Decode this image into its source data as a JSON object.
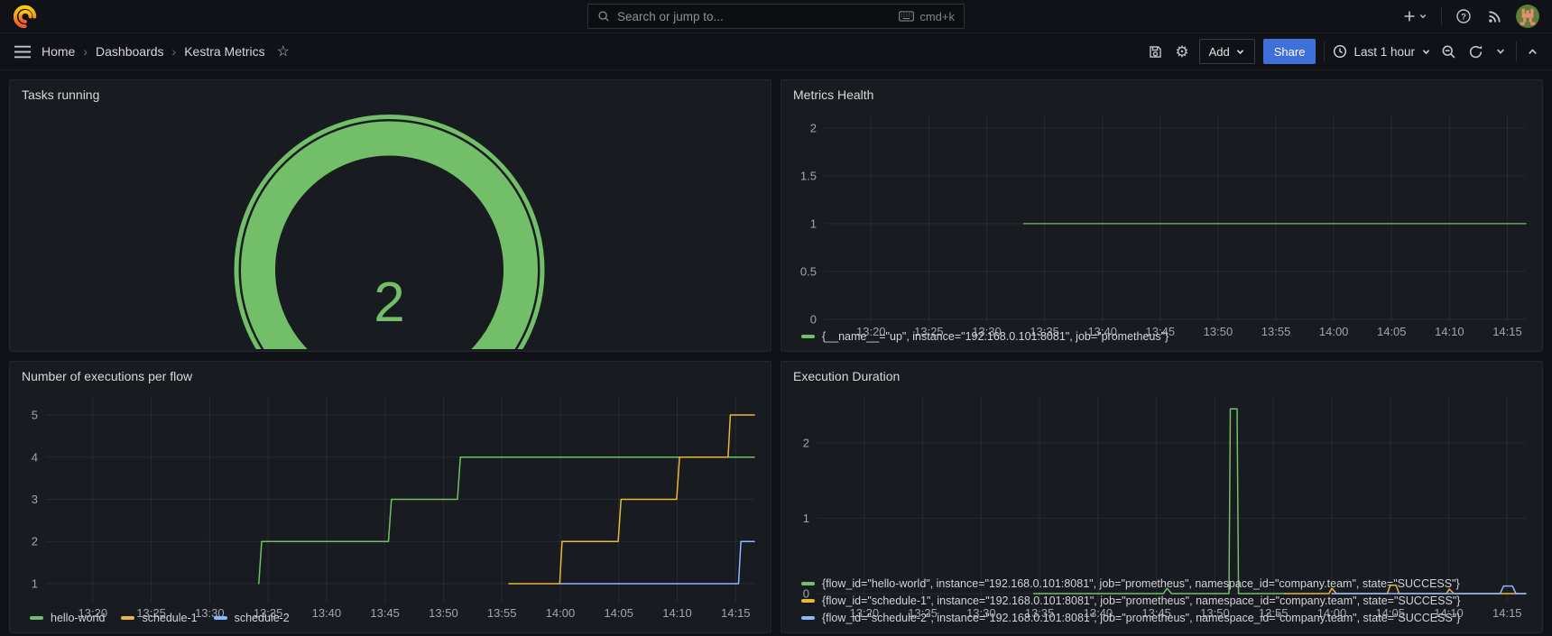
{
  "nav": {
    "search_placeholder": "Search or jump to...",
    "search_shortcut": "cmd+k"
  },
  "breadcrumb": {
    "items": [
      "Home",
      "Dashboards",
      "Kestra Metrics"
    ]
  },
  "toolbar": {
    "add_label": "Add",
    "share_label": "Share",
    "time_range_label": "Last 1 hour"
  },
  "colors": {
    "green": "#73BF69",
    "yellow": "#EAB839",
    "blue": "#8AB8FF",
    "share_button": "#3D71D9",
    "grid": "rgba(204,204,220,0.09)",
    "axis_text": "#A2A5AD",
    "legend_text": "#D3D4D9"
  },
  "chart_data": [
    {
      "panel": "tasks-running",
      "type": "gauge",
      "title": "Tasks running",
      "value": "2",
      "color_key": "green"
    },
    {
      "panel": "metrics-health",
      "type": "line",
      "title": "Metrics Health",
      "ml": 42,
      "x_domain": [
        16,
        76.6
      ],
      "x_ticks": [
        20,
        25,
        30,
        35,
        40,
        45,
        50,
        55,
        60,
        65,
        70,
        75
      ],
      "x_tick_labels": [
        "13:20",
        "13:25",
        "13:30",
        "13:35",
        "13:40",
        "13:45",
        "13:50",
        "13:55",
        "14:00",
        "14:05",
        "14:10",
        "14:15"
      ],
      "y_domain": [
        -0.02,
        2.14
      ],
      "y_ticks": [
        0,
        0.5,
        1,
        1.5,
        2
      ],
      "y_tick_labels": [
        "0",
        "0.5",
        "1",
        "1.5",
        "2"
      ],
      "series": [
        {
          "name": "up",
          "color_key": "green",
          "width": 1.3,
          "points": [
            [
              33.2,
              1
            ],
            [
              76.6,
              1
            ]
          ]
        }
      ],
      "legend": {
        "layout": "row",
        "items": [
          {
            "color_key": "green",
            "label": "{__name__=\"up\", instance=\"192.168.0.101:8081\", job=\"prometheus\"}"
          }
        ]
      }
    },
    {
      "panel": "executions",
      "type": "line",
      "title": "Number of executions per flow",
      "ml": 34,
      "x_domain": [
        16,
        76.6
      ],
      "x_ticks": [
        20,
        25,
        30,
        35,
        40,
        45,
        50,
        55,
        60,
        65,
        70,
        75
      ],
      "x_tick_labels": [
        "13:20",
        "13:25",
        "13:30",
        "13:35",
        "13:40",
        "13:45",
        "13:50",
        "13:55",
        "14:00",
        "14:05",
        "14:10",
        "14:15"
      ],
      "y_domain": [
        0.55,
        5.45
      ],
      "y_ticks": [
        1,
        2,
        3,
        4,
        5
      ],
      "y_tick_labels": [
        "1",
        "2",
        "3",
        "4",
        "5"
      ],
      "series": [
        {
          "name": "hello-world",
          "color_key": "green",
          "width": 1.5,
          "points": [
            [
              34.2,
              1
            ],
            [
              34.45,
              2
            ],
            [
              45.3,
              2
            ],
            [
              45.55,
              3
            ],
            [
              51.2,
              3
            ],
            [
              51.45,
              4
            ],
            [
              76.6,
              4
            ]
          ]
        },
        {
          "name": "schedule-1",
          "color_key": "yellow",
          "width": 1.5,
          "points": [
            [
              55.6,
              1
            ],
            [
              59.95,
              1
            ],
            [
              60.15,
              2
            ],
            [
              64.95,
              2
            ],
            [
              65.2,
              3
            ],
            [
              69.95,
              3
            ],
            [
              70.2,
              4
            ],
            [
              74.35,
              4
            ],
            [
              74.55,
              5
            ],
            [
              76.6,
              5
            ]
          ]
        },
        {
          "name": "schedule-2",
          "color_key": "blue",
          "width": 1.5,
          "points": [
            [
              60,
              1
            ],
            [
              75.25,
              1
            ],
            [
              75.45,
              2
            ],
            [
              76.6,
              2
            ]
          ]
        }
      ],
      "legend": {
        "layout": "row",
        "items": [
          {
            "color_key": "green",
            "label": "hello-world"
          },
          {
            "color_key": "yellow",
            "label": "schedule-1"
          },
          {
            "color_key": "blue",
            "label": "schedule-2"
          }
        ]
      }
    },
    {
      "panel": "duration",
      "type": "line",
      "title": "Execution Duration",
      "ml": 34,
      "x_domain": [
        16,
        76.6
      ],
      "x_ticks": [
        20,
        25,
        30,
        35,
        40,
        45,
        50,
        55,
        60,
        65,
        70,
        75
      ],
      "x_tick_labels": [
        "13:20",
        "13:25",
        "13:30",
        "13:35",
        "13:40",
        "13:45",
        "13:50",
        "13:55",
        "14:00",
        "14:05",
        "14:10",
        "14:15"
      ],
      "y_domain": [
        -0.12,
        2.62
      ],
      "y_ticks": [
        0,
        1,
        2
      ],
      "y_tick_labels": [
        "0",
        "1",
        "2"
      ],
      "series": [
        {
          "name": "hello-world",
          "color_key": "green",
          "width": 1.5,
          "points": [
            [
              34.5,
              0
            ],
            [
              45.6,
              0
            ],
            [
              45.9,
              0.07
            ],
            [
              46.3,
              0
            ],
            [
              51.2,
              0
            ],
            [
              51.32,
              2.45
            ],
            [
              51.9,
              2.45
            ],
            [
              52.02,
              0
            ],
            [
              56,
              0
            ]
          ]
        },
        {
          "name": "schedule-1",
          "color_key": "yellow",
          "width": 1.5,
          "points": [
            [
              56,
              0
            ],
            [
              59.75,
              0
            ],
            [
              60,
              0.07
            ],
            [
              60.4,
              0
            ],
            [
              64.75,
              0
            ],
            [
              65,
              0.11
            ],
            [
              65.5,
              0.11
            ],
            [
              65.75,
              0
            ],
            [
              69.8,
              0
            ],
            [
              70.05,
              0.06
            ],
            [
              70.45,
              0
            ],
            [
              76.6,
              0
            ]
          ]
        },
        {
          "name": "schedule-2",
          "color_key": "blue",
          "width": 1.5,
          "points": [
            [
              60,
              0
            ],
            [
              74.4,
              0
            ],
            [
              74.7,
              0.1
            ],
            [
              75.45,
              0.1
            ],
            [
              75.75,
              0
            ],
            [
              76.6,
              0
            ]
          ]
        }
      ],
      "legend": {
        "layout": "column",
        "items": [
          {
            "color_key": "green",
            "label": "{flow_id=\"hello-world\", instance=\"192.168.0.101:8081\", job=\"prometheus\", namespace_id=\"company.team\", state=\"SUCCESS\"}"
          },
          {
            "color_key": "yellow",
            "label": "{flow_id=\"schedule-1\", instance=\"192.168.0.101:8081\", job=\"prometheus\", namespace_id=\"company.team\", state=\"SUCCESS\"}"
          },
          {
            "color_key": "blue",
            "label": "{flow_id=\"schedule-2\", instance=\"192.168.0.101:8081\", job=\"prometheus\", namespace_id=\"company.team\", state=\"SUCCESS\"}"
          }
        ]
      }
    }
  ]
}
